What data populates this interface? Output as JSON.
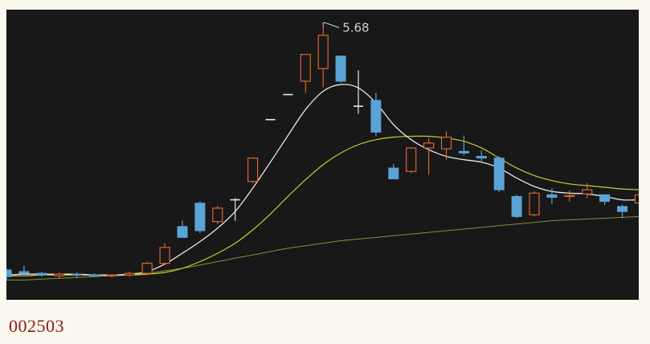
{
  "caption": "002503",
  "chart_data": {
    "type": "candlestick",
    "peak_label": "5.68",
    "ylim": [
      2.5,
      5.8
    ],
    "colors": {
      "background": "#181818",
      "up": "#d9652e",
      "down": "#5aa3d6",
      "doji": "#e8e8e8",
      "ma_short": "#e6e6e6",
      "ma_mid": "#c9cc2e",
      "ma_long": "#8a8f3a",
      "label": "#cfcfcf",
      "caption": "#8b1a12"
    },
    "candles": [
      {
        "o": 2.78,
        "h": 2.8,
        "l": 2.66,
        "c": 2.7
      },
      {
        "o": 2.76,
        "h": 2.83,
        "l": 2.72,
        "c": 2.74
      },
      {
        "o": 2.74,
        "h": 2.76,
        "l": 2.7,
        "c": 2.72
      },
      {
        "o": 2.71,
        "h": 2.75,
        "l": 2.68,
        "c": 2.73
      },
      {
        "o": 2.73,
        "h": 2.75,
        "l": 2.69,
        "c": 2.72
      },
      {
        "o": 2.72,
        "h": 2.74,
        "l": 2.7,
        "c": 2.71
      },
      {
        "o": 2.71,
        "h": 2.73,
        "l": 2.69,
        "c": 2.72
      },
      {
        "o": 2.72,
        "h": 2.76,
        "l": 2.7,
        "c": 2.74
      },
      {
        "o": 2.74,
        "h": 2.88,
        "l": 2.72,
        "c": 2.86
      },
      {
        "o": 2.86,
        "h": 3.1,
        "l": 2.84,
        "c": 3.05
      },
      {
        "o": 3.3,
        "h": 3.37,
        "l": 3.17,
        "c": 3.17
      },
      {
        "o": 3.58,
        "h": 3.6,
        "l": 3.22,
        "c": 3.25
      },
      {
        "o": 3.36,
        "h": 3.55,
        "l": 3.33,
        "c": 3.52
      },
      {
        "o": 3.62,
        "h": 3.64,
        "l": 3.37,
        "c": 3.62
      },
      {
        "o": 3.84,
        "h": 4.12,
        "l": 3.82,
        "c": 4.12
      },
      {
        "o": 4.58,
        "h": 4.58,
        "l": 4.58,
        "c": 4.58
      },
      {
        "o": 4.88,
        "h": 4.88,
        "l": 4.88,
        "c": 4.88
      },
      {
        "o": 5.04,
        "h": 5.36,
        "l": 4.9,
        "c": 5.36
      },
      {
        "o": 5.19,
        "h": 5.68,
        "l": 4.97,
        "c": 5.59
      },
      {
        "o": 5.34,
        "h": 5.34,
        "l": 5.02,
        "c": 5.04
      },
      {
        "o": 4.74,
        "h": 5.17,
        "l": 4.65,
        "c": 4.74
      },
      {
        "o": 4.81,
        "h": 4.9,
        "l": 4.38,
        "c": 4.43
      },
      {
        "o": 4.0,
        "h": 4.05,
        "l": 3.87,
        "c": 3.87
      },
      {
        "o": 3.96,
        "h": 4.25,
        "l": 3.94,
        "c": 4.24
      },
      {
        "o": 4.24,
        "h": 4.36,
        "l": 3.92,
        "c": 4.3
      },
      {
        "o": 4.23,
        "h": 4.44,
        "l": 4.1,
        "c": 4.37
      },
      {
        "o": 4.2,
        "h": 4.39,
        "l": 4.15,
        "c": 4.18
      },
      {
        "o": 4.14,
        "h": 4.21,
        "l": 4.06,
        "c": 4.12
      },
      {
        "o": 4.12,
        "h": 4.14,
        "l": 3.71,
        "c": 3.74
      },
      {
        "o": 3.66,
        "h": 3.68,
        "l": 3.4,
        "c": 3.42
      },
      {
        "o": 3.44,
        "h": 3.72,
        "l": 3.42,
        "c": 3.7
      },
      {
        "o": 3.68,
        "h": 3.76,
        "l": 3.57,
        "c": 3.65
      },
      {
        "o": 3.66,
        "h": 3.73,
        "l": 3.6,
        "c": 3.67
      },
      {
        "o": 3.69,
        "h": 3.82,
        "l": 3.64,
        "c": 3.74
      },
      {
        "o": 3.68,
        "h": 3.68,
        "l": 3.56,
        "c": 3.6
      },
      {
        "o": 3.54,
        "h": 3.56,
        "l": 3.4,
        "c": 3.48
      },
      {
        "o": 3.58,
        "h": 3.8,
        "l": 3.5,
        "c": 3.68
      }
    ],
    "ma_short": [
      2.72,
      2.73,
      2.73,
      2.73,
      2.73,
      2.72,
      2.72,
      2.73,
      2.76,
      2.85,
      2.98,
      3.12,
      3.28,
      3.48,
      3.76,
      4.07,
      4.39,
      4.7,
      4.92,
      5.0,
      4.96,
      4.78,
      4.52,
      4.34,
      4.22,
      4.14,
      4.1,
      4.07,
      4.0,
      3.88,
      3.78,
      3.72,
      3.7,
      3.69,
      3.66,
      3.62,
      3.62
    ],
    "ma_mid": [
      2.71,
      2.71,
      2.72,
      2.72,
      2.72,
      2.72,
      2.72,
      2.72,
      2.73,
      2.75,
      2.8,
      2.88,
      2.98,
      3.1,
      3.26,
      3.45,
      3.66,
      3.86,
      4.04,
      4.18,
      4.28,
      4.34,
      4.37,
      4.38,
      4.38,
      4.36,
      4.32,
      4.24,
      4.12,
      4.0,
      3.91,
      3.85,
      3.81,
      3.79,
      3.77,
      3.75,
      3.74
    ],
    "ma_long": [
      2.66,
      2.66,
      2.67,
      2.68,
      2.69,
      2.7,
      2.71,
      2.72,
      2.74,
      2.77,
      2.8,
      2.84,
      2.88,
      2.92,
      2.96,
      3.0,
      3.04,
      3.07,
      3.1,
      3.13,
      3.15,
      3.17,
      3.19,
      3.21,
      3.23,
      3.25,
      3.27,
      3.29,
      3.31,
      3.33,
      3.35,
      3.37,
      3.38,
      3.39,
      3.4,
      3.41,
      3.42
    ]
  }
}
